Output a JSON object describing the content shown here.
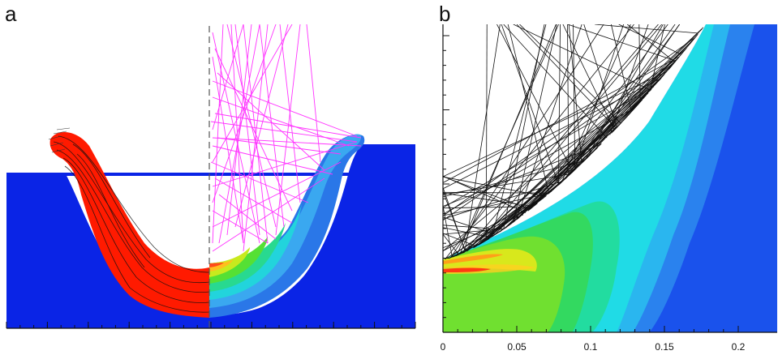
{
  "panels": {
    "a": {
      "label": "a"
    },
    "b": {
      "label": "b",
      "x_ticks": [
        "0",
        "0.05",
        "0.1",
        "0.15",
        "0.2"
      ]
    }
  },
  "colors": {
    "background": "#ffffff",
    "domain_blue": "#0a24e6",
    "particle_red": "#ff1a00",
    "ray_magenta": "#ff33ff",
    "ray_black": "#111111"
  }
}
